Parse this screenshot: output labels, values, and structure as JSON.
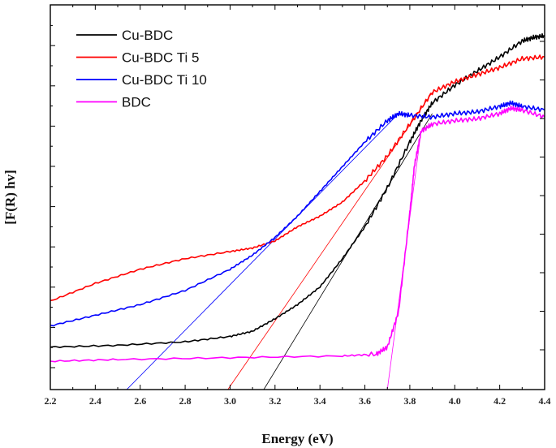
{
  "chart_data": {
    "type": "line",
    "title": "",
    "xlabel": "Energy (eV)",
    "ylabel": "[F(R) hv]",
    "xlim": [
      2.2,
      4.4
    ],
    "ylim": [
      0,
      1
    ],
    "x_ticks": [
      "2.2",
      "2.4",
      "2.6",
      "2.8",
      "3.0",
      "3.2",
      "3.4",
      "3.6",
      "3.8",
      "4.0",
      "4.2",
      "4.4"
    ],
    "legend_position": "top-left",
    "series": [
      {
        "name": "Cu-BDC",
        "color": "#000000",
        "x": [
          2.2,
          2.5,
          2.8,
          3.0,
          3.1,
          3.2,
          3.3,
          3.4,
          3.5,
          3.6,
          3.7,
          3.8,
          3.85,
          3.9,
          4.0,
          4.1,
          4.2,
          4.3,
          4.35,
          4.4
        ],
        "y": [
          0.12,
          0.125,
          0.135,
          0.15,
          0.165,
          0.2,
          0.24,
          0.29,
          0.37,
          0.46,
          0.57,
          0.7,
          0.76,
          0.81,
          0.86,
          0.9,
          0.94,
          0.985,
          0.995,
          1.0
        ]
      },
      {
        "name": "Cu-BDC Ti 5",
        "color": "#ff0000",
        "x": [
          2.2,
          2.4,
          2.6,
          2.8,
          3.0,
          3.1,
          3.2,
          3.3,
          3.4,
          3.5,
          3.6,
          3.7,
          3.8,
          3.9,
          4.0,
          4.1,
          4.2,
          4.3,
          4.4
        ],
        "y": [
          0.25,
          0.3,
          0.34,
          0.37,
          0.39,
          0.4,
          0.42,
          0.46,
          0.49,
          0.53,
          0.59,
          0.66,
          0.75,
          0.84,
          0.87,
          0.89,
          0.91,
          0.935,
          0.94
        ]
      },
      {
        "name": "Cu-BDC Ti 10",
        "color": "#0000ff",
        "x": [
          2.2,
          2.4,
          2.6,
          2.8,
          3.0,
          3.1,
          3.2,
          3.3,
          3.4,
          3.5,
          3.6,
          3.7,
          3.75,
          3.8,
          3.9,
          4.0,
          4.1,
          4.2,
          4.25,
          4.3,
          4.4
        ],
        "y": [
          0.18,
          0.21,
          0.24,
          0.28,
          0.34,
          0.38,
          0.43,
          0.49,
          0.56,
          0.63,
          0.7,
          0.76,
          0.78,
          0.775,
          0.77,
          0.78,
          0.785,
          0.8,
          0.81,
          0.8,
          0.79
        ]
      },
      {
        "name": "BDC",
        "color": "#ff00ff",
        "x": [
          2.2,
          2.5,
          3.0,
          3.5,
          3.65,
          3.7,
          3.75,
          3.8,
          3.82,
          3.85,
          3.9,
          4.0,
          4.1,
          4.2,
          4.25,
          4.3,
          4.4
        ],
        "y": [
          0.08,
          0.085,
          0.09,
          0.095,
          0.1,
          0.12,
          0.22,
          0.5,
          0.63,
          0.73,
          0.75,
          0.76,
          0.765,
          0.78,
          0.795,
          0.79,
          0.77
        ]
      }
    ],
    "tangent_lines": [
      {
        "series": "Cu-BDC",
        "color": "#000000",
        "x": [
          3.15,
          3.9
        ],
        "y": [
          0.0,
          0.78
        ]
      },
      {
        "series": "Cu-BDC Ti 5",
        "color": "#ff0000",
        "x": [
          2.99,
          3.9
        ],
        "y": [
          0.0,
          0.84
        ]
      },
      {
        "series": "Cu-BDC Ti 10",
        "color": "#0000ff",
        "x": [
          2.54,
          3.75
        ],
        "y": [
          0.0,
          0.78
        ]
      },
      {
        "series": "BDC",
        "color": "#ff00ff",
        "x": [
          3.7,
          3.85
        ],
        "y": [
          0.0,
          0.73
        ]
      }
    ]
  }
}
